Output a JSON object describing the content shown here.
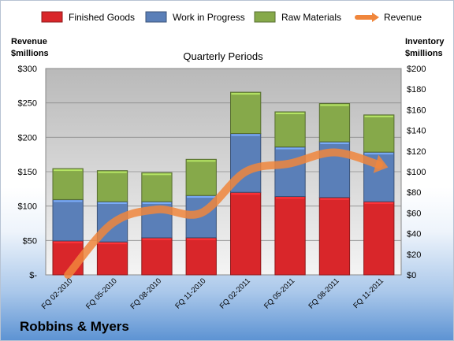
{
  "chart_data": {
    "type": "bar",
    "subtype": "stacked bar with line overlay",
    "title": "Quarterly Periods",
    "left_axis_label": [
      "Revenue",
      "$millions"
    ],
    "right_axis_label": [
      "Inventory",
      "$millions"
    ],
    "left_axis": {
      "min": 0,
      "max": 300,
      "ticks": [
        "$-",
        "$50",
        "$100",
        "$150",
        "$200",
        "$250",
        "$300"
      ]
    },
    "right_axis": {
      "min": 0,
      "max": 200,
      "ticks": [
        "$0",
        "$20",
        "$40",
        "$60",
        "$80",
        "$100",
        "$120",
        "$140",
        "$160",
        "$180",
        "$200"
      ]
    },
    "categories": [
      "FQ 02-2010",
      "FQ 05-2010",
      "FQ 08-2010",
      "FQ 11-2010",
      "FQ 02-2011",
      "FQ 05-2011",
      "FQ 08-2011",
      "FQ 11-2011"
    ],
    "series": [
      {
        "name": "Finished Goods",
        "axis": "right",
        "color": "#d9262a",
        "values": [
          33,
          32,
          36,
          36,
          80,
          76,
          75,
          71
        ]
      },
      {
        "name": "Work in Progress",
        "axis": "right",
        "color": "#5a7fb8",
        "values": [
          40,
          39,
          35,
          41,
          57,
          48,
          54,
          48
        ]
      },
      {
        "name": "Raw Materials",
        "axis": "right",
        "color": "#86a94a",
        "values": [
          30,
          30,
          28,
          35,
          40,
          34,
          37,
          36
        ]
      },
      {
        "name": "Revenue",
        "axis": "left",
        "type": "line",
        "color": "#f0863c",
        "values": [
          0,
          75,
          95,
          90,
          150,
          162,
          178,
          160
        ]
      }
    ],
    "grid": true,
    "legend_position": "top"
  },
  "footer": {
    "company": "Robbins & Myers"
  }
}
